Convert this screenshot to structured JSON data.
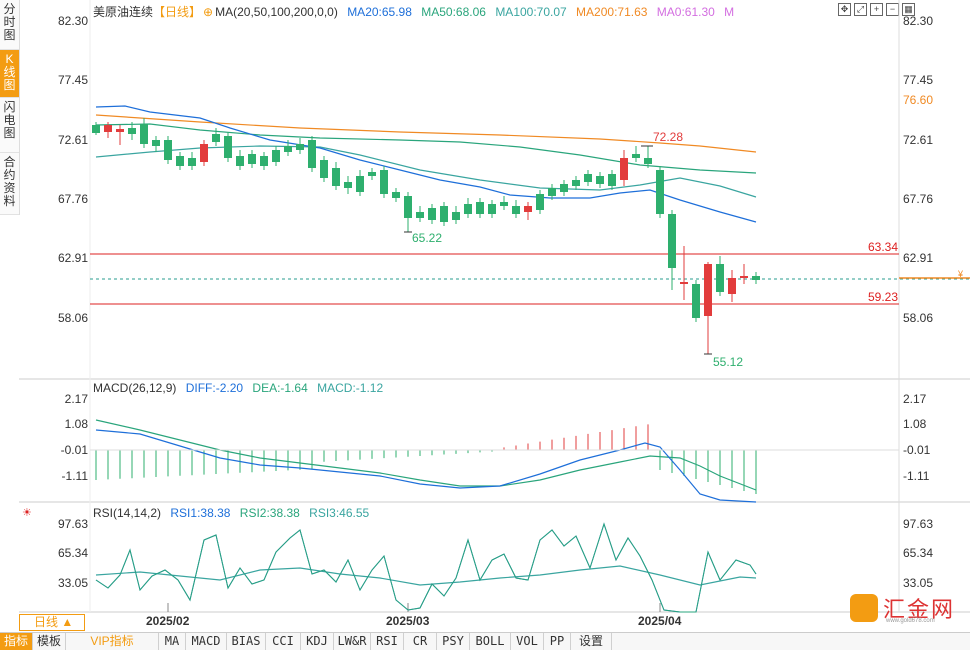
{
  "left_tabs": [
    "分时图",
    "K线图",
    "闪电图",
    "合约资料"
  ],
  "main_legend": {
    "name": "美原油连续",
    "period": "【日线】",
    "settings_glyph": "⊕",
    "ma_label": "MA(20,50,100,200,0,0)",
    "items": [
      {
        "text": "MA20:65.98",
        "color": "#1e6fd9"
      },
      {
        "text": "MA50:68.06",
        "color": "#2aa57c"
      },
      {
        "text": "MA100:70.07",
        "color": "#3aa5a0"
      },
      {
        "text": "MA200:71.63",
        "color": "#f08a24"
      },
      {
        "text": "MA0:61.30",
        "color": "#d36ee0"
      },
      {
        "text": "M",
        "color": "#d36ee0"
      }
    ]
  },
  "price_axis": [
    "82.30",
    "77.45",
    "72.61",
    "67.76",
    "62.91",
    "58.06"
  ],
  "price_markers": {
    "ma200_tag": "76.60",
    "high_label": "72.28",
    "low1_label": "65.22",
    "low2_label": "55.12",
    "line_high": "63.34",
    "line_low": "59.23"
  },
  "macd_legend": {
    "label": "MACD(26,12,9)",
    "diff": "DIFF:-2.20",
    "dea": "DEA:-1.64",
    "macd": "MACD:-1.12"
  },
  "macd_axis": [
    "2.17",
    "1.08",
    "-0.01",
    "-1.11"
  ],
  "rsi_legend": {
    "label": "RSI(14,14,2)",
    "rsi1": "RSI1:38.38",
    "rsi2": "RSI2:38.38",
    "rsi3": "RSI3:46.55"
  },
  "rsi_axis": [
    "97.63",
    "65.34",
    "33.05"
  ],
  "dates": [
    "2025/02",
    "2025/03",
    "2025/04"
  ],
  "period_button": "日线 ▲",
  "bottom_tabs": [
    "指标",
    "模板",
    "VIP指标",
    "MA",
    "MACD",
    "BIAS",
    "CCI",
    "KDJ",
    "LW&R",
    "RSI",
    "CR",
    "PSY",
    "BOLL",
    "VOL",
    "PP",
    "设置"
  ],
  "watermark": {
    "text": "汇金网",
    "url": "www.gold678.com"
  },
  "colors": {
    "up": "#e23c3c",
    "down": "#2eaf6e",
    "accent": "#f39c12"
  }
}
